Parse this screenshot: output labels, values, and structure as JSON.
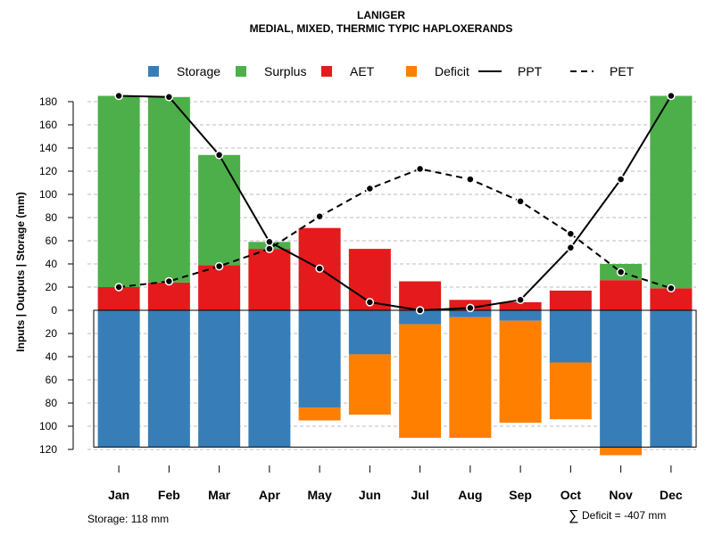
{
  "chart_data": {
    "type": "bar",
    "title": "LANIGER",
    "subtitle": "MEDIAL, MIXED, THERMIC TYPIC HAPLOXERANDS",
    "ylabel": "Inputs | Outputs | Storage    (mm)",
    "categories": [
      "Jan",
      "Feb",
      "Mar",
      "Apr",
      "May",
      "Jun",
      "Jul",
      "Aug",
      "Sep",
      "Oct",
      "Nov",
      "Dec"
    ],
    "ylim": [
      -120,
      180
    ],
    "yticks": [
      {
        "value": 180,
        "label": "180"
      },
      {
        "value": 160,
        "label": "160"
      },
      {
        "value": 140,
        "label": "140"
      },
      {
        "value": 120,
        "label": "120"
      },
      {
        "value": 100,
        "label": "100"
      },
      {
        "value": 80,
        "label": "80"
      },
      {
        "value": 60,
        "label": "60"
      },
      {
        "value": 40,
        "label": "40"
      },
      {
        "value": 20,
        "label": "20"
      },
      {
        "value": 0,
        "label": "0"
      },
      {
        "value": -20,
        "label": "20"
      },
      {
        "value": -40,
        "label": "40"
      },
      {
        "value": -60,
        "label": "60"
      },
      {
        "value": -80,
        "label": "80"
      },
      {
        "value": -100,
        "label": "100"
      },
      {
        "value": -120,
        "label": "120"
      }
    ],
    "legend": [
      {
        "name": "Storage",
        "kind": "square",
        "color": "#377EB8"
      },
      {
        "name": "Surplus",
        "kind": "square",
        "color": "#4DAF4A"
      },
      {
        "name": "AET",
        "kind": "square",
        "color": "#E41A1C"
      },
      {
        "name": "Deficit",
        "kind": "square",
        "color": "#FF7F00"
      },
      {
        "name": "PPT",
        "kind": "solid-line",
        "color": "#000000"
      },
      {
        "name": "PET",
        "kind": "dashed-line",
        "color": "#000000"
      }
    ],
    "series": {
      "aet": [
        20,
        24,
        39,
        53,
        71,
        53,
        25,
        9,
        7,
        17,
        26,
        19
      ],
      "surplus": [
        165,
        160,
        95,
        6,
        0,
        0,
        0,
        0,
        0,
        0,
        14,
        166
      ],
      "storage": [
        118,
        118,
        118,
        118,
        84,
        38,
        12,
        6,
        9,
        45,
        118,
        118
      ],
      "deficit": [
        0,
        0,
        0,
        0,
        11,
        52,
        98,
        104,
        88,
        49,
        7,
        0
      ],
      "ppt": [
        185,
        184,
        134,
        59,
        36,
        7,
        0,
        2,
        9,
        54,
        113,
        185
      ],
      "pet": [
        20,
        25,
        38,
        53,
        81,
        105,
        122,
        113,
        94,
        66,
        33,
        19
      ]
    },
    "colors": {
      "storage": "#377EB8",
      "surplus": "#4DAF4A",
      "aet": "#E41A1C",
      "deficit": "#FF7F00",
      "grid": "#BEBEBE"
    },
    "grid": true,
    "legend_position": "top"
  },
  "footer": {
    "storage_note": "Storage: 118 mm",
    "deficit_symbol": "∑",
    "deficit_note": "Deficit = -407 mm"
  }
}
